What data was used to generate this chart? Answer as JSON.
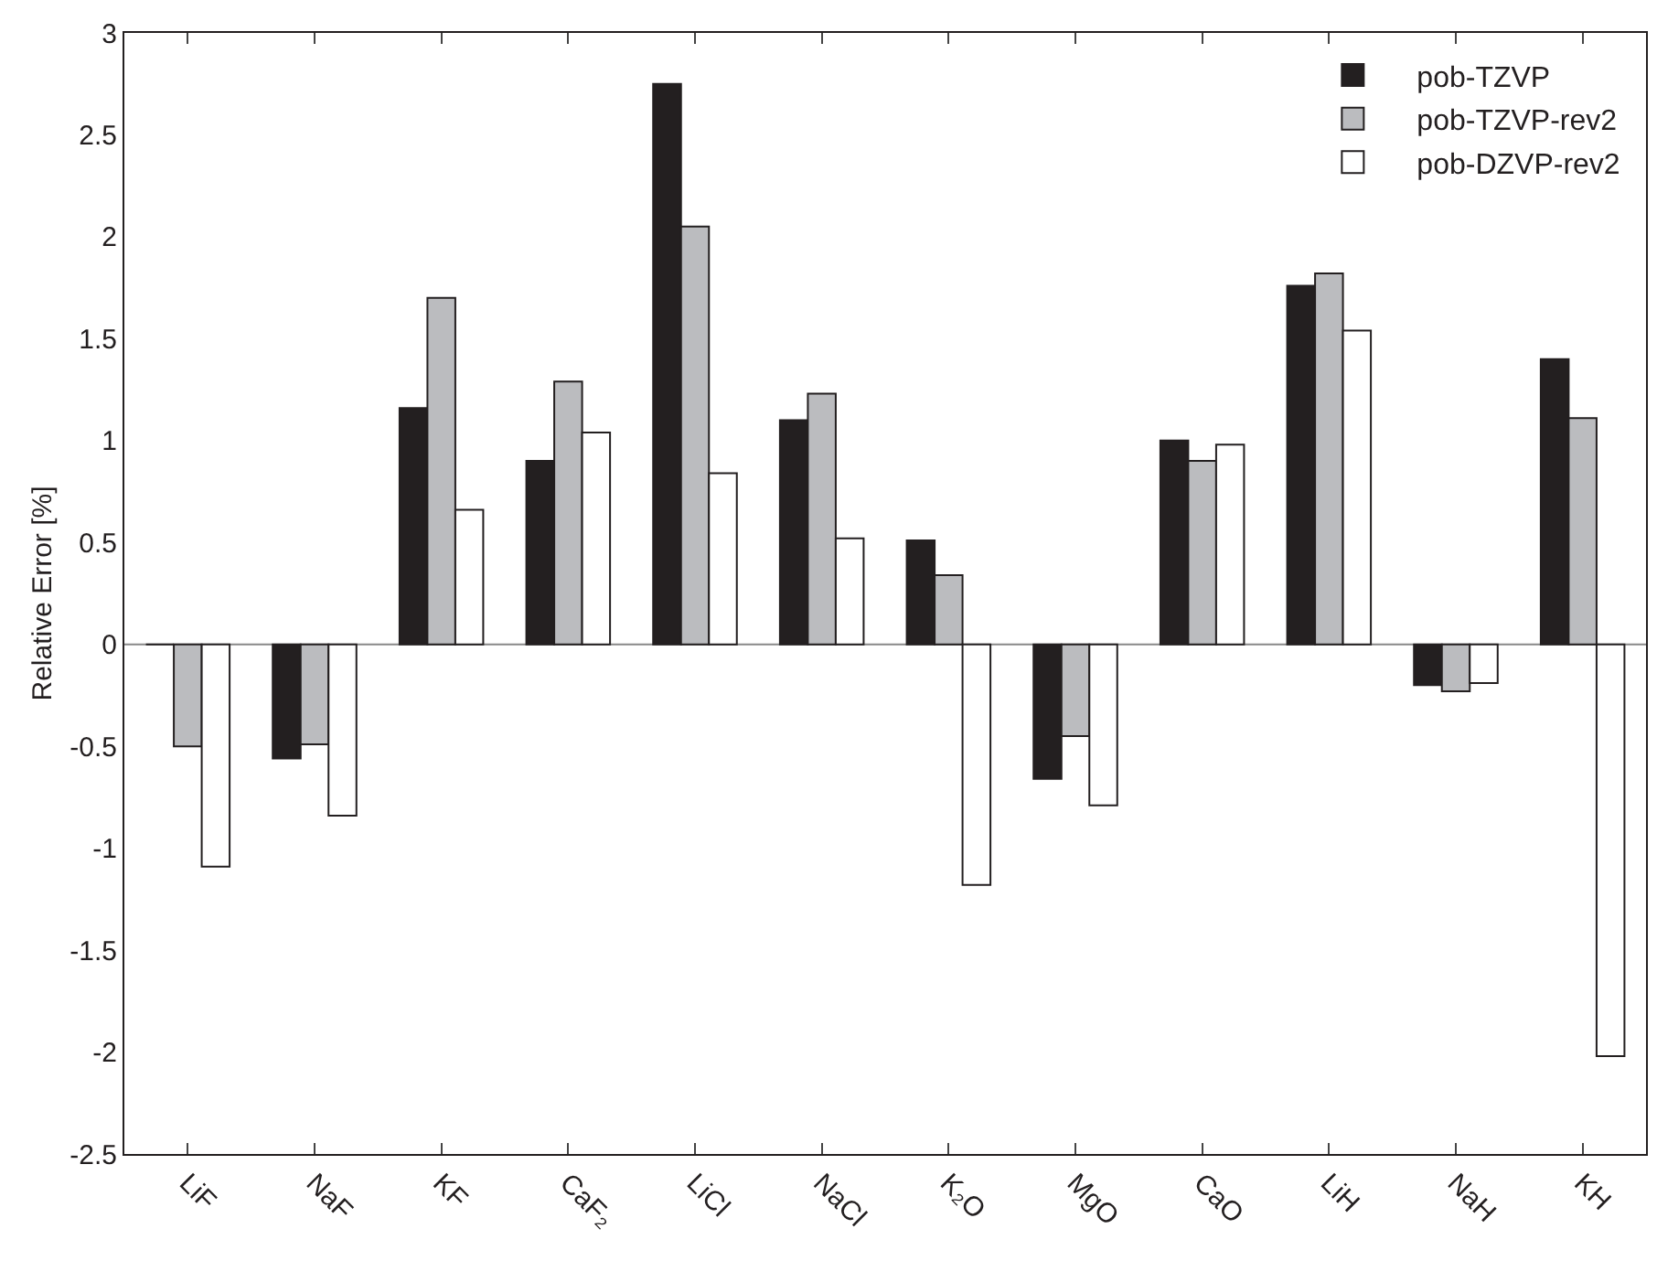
{
  "chart_data": {
    "type": "bar",
    "ylabel": "Relative Error [%]",
    "categories": [
      "LiF",
      "NaF",
      "KF",
      "CaF₂",
      "LiCl",
      "NaCl",
      "K₂O",
      "MgO",
      "CaO",
      "LiH",
      "NaH",
      "KH"
    ],
    "series": [
      {
        "name": "pob-TZVP",
        "color": "#231f20",
        "values": [
          0,
          -0.56,
          1.16,
          0.9,
          2.75,
          1.1,
          0.51,
          -0.66,
          1.0,
          1.76,
          -0.2,
          1.4
        ]
      },
      {
        "name": "pob-TZVP-rev2",
        "color": "#bbbcbf",
        "values": [
          -0.5,
          -0.49,
          1.7,
          1.29,
          2.05,
          1.23,
          0.34,
          -0.45,
          0.9,
          1.82,
          -0.23,
          1.11
        ]
      },
      {
        "name": "pob-DZVP-rev2",
        "color": "#ffffff",
        "values": [
          -1.09,
          -0.84,
          0.66,
          1.04,
          0.84,
          0.52,
          -1.18,
          -0.79,
          0.98,
          1.54,
          -0.19,
          -2.02
        ]
      }
    ],
    "ylim": [
      -2.5,
      3
    ],
    "yticks": [
      -2.5,
      -2,
      -1.5,
      -1,
      -0.5,
      0,
      0.5,
      1,
      1.5,
      2,
      2.5,
      3
    ],
    "ref_lines": [
      {
        "axis": "y",
        "value": 0,
        "color": "#888888"
      }
    ],
    "grid": false,
    "legend": "top right"
  }
}
